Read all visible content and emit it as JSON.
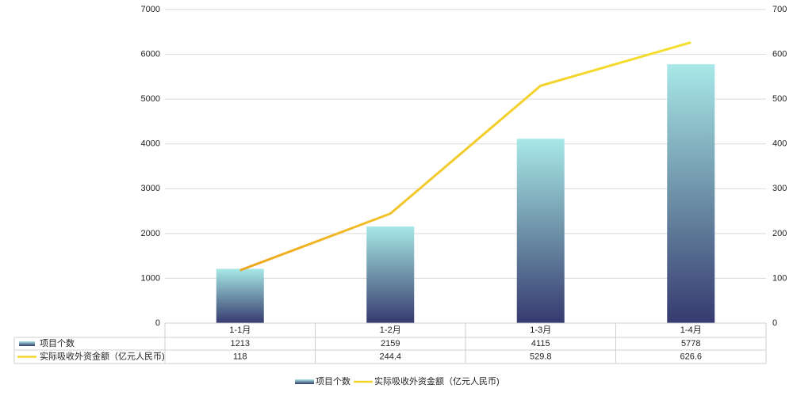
{
  "chart_data": {
    "type": "bar-line",
    "categories": [
      "1-1月",
      "1-2月",
      "1-3月",
      "1-4月"
    ],
    "series": [
      {
        "name": "项目个数",
        "type": "bar",
        "color": "#4a5a8a",
        "values": [
          1213,
          2159,
          4115,
          5778
        ]
      },
      {
        "name": "实际吸收外资金额（亿元人民币)",
        "type": "line",
        "color": "#f2d52a",
        "axis": "y2",
        "values": [
          118,
          244.4,
          529.8,
          626.6
        ]
      }
    ],
    "ylim": [
      0,
      7000
    ],
    "yticks": [
      0,
      1000,
      2000,
      3000,
      4000,
      5000,
      6000,
      7000
    ],
    "y2lim": [
      0,
      700
    ],
    "y2ticks": [
      0,
      100,
      200,
      300,
      400,
      500,
      600,
      700
    ],
    "grid": true,
    "legend": "bottom",
    "data_table": true
  }
}
